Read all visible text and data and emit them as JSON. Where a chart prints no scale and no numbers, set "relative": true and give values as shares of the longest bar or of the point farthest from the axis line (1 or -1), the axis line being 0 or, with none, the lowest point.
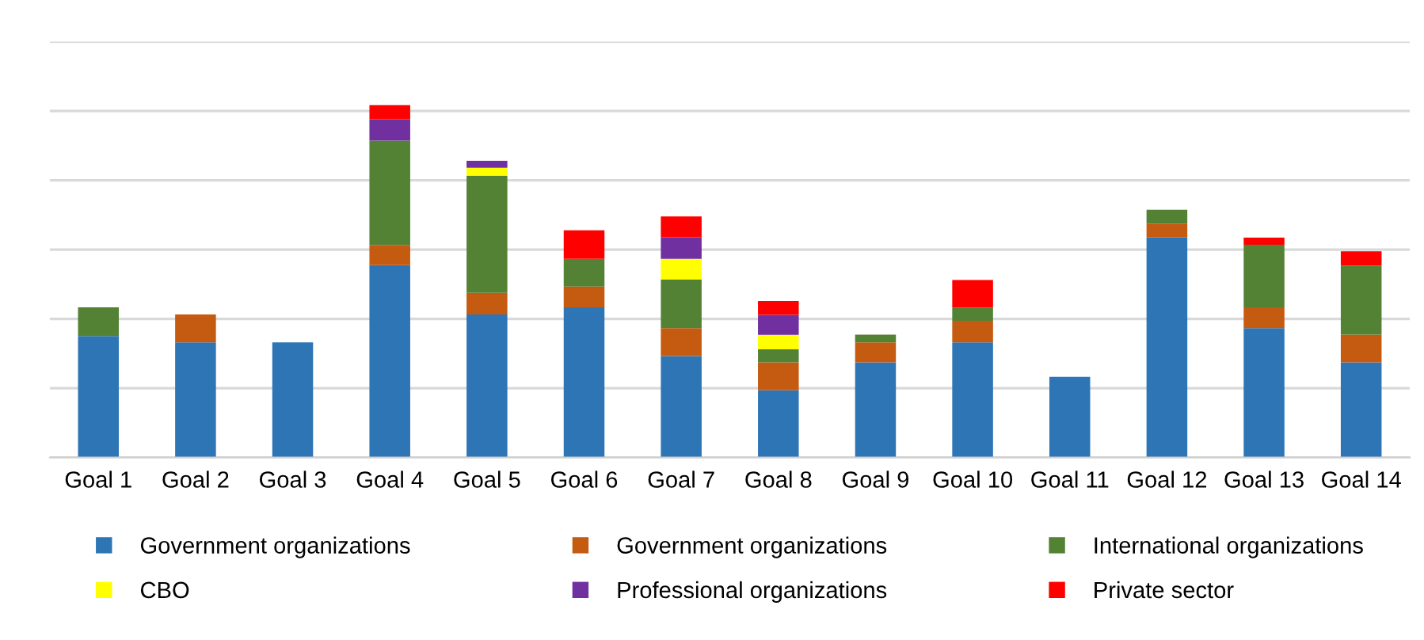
{
  "chart_data": {
    "type": "bar",
    "stacked": true,
    "relative": true,
    "grid": "y",
    "legend": "bottom",
    "categories": [
      "Goal 1",
      "Goal 2",
      "Goal 3",
      "Goal 4",
      "Goal 5",
      "Goal 6",
      "Goal 7",
      "Goal 8",
      "Goal 9",
      "Goal 10",
      "Goal 11",
      "Goal 12",
      "Goal 13",
      "Goal 14"
    ],
    "series": [
      {
        "name": "Government organizations",
        "color": "#2e75b6",
        "values": [
          0.345,
          0.327,
          0.327,
          0.546,
          0.406,
          0.426,
          0.288,
          0.191,
          0.27,
          0.327,
          0.229,
          0.625,
          0.367,
          0.27
        ]
      },
      {
        "name": "Government organizations",
        "color": "#c55a11",
        "values": [
          0,
          0.079,
          0,
          0.057,
          0.061,
          0.059,
          0.079,
          0.079,
          0.057,
          0.061,
          0,
          0.039,
          0.059,
          0.079
        ]
      },
      {
        "name": "International organizations",
        "color": "#548235",
        "values": [
          0.081,
          0,
          0,
          0.296,
          0.333,
          0.079,
          0.138,
          0.037,
          0.022,
          0.037,
          0,
          0.039,
          0.178,
          0.195
        ]
      },
      {
        "name": "CBO",
        "color": "#ffff00",
        "values": [
          0,
          0,
          0,
          0,
          0.022,
          0,
          0.059,
          0.041,
          0,
          0,
          0,
          0,
          0,
          0
        ]
      },
      {
        "name": "Professional organizations",
        "color": "#7030a0",
        "values": [
          0,
          0,
          0,
          0.061,
          0.02,
          0,
          0.061,
          0.057,
          0,
          0,
          0,
          0,
          0,
          0
        ]
      },
      {
        "name": "Private sector",
        "color": "#ff0000",
        "values": [
          0,
          0,
          0,
          0.04,
          0,
          0.081,
          0.059,
          0.039,
          0,
          0.079,
          0,
          0,
          0.02,
          0.041
        ]
      }
    ]
  }
}
